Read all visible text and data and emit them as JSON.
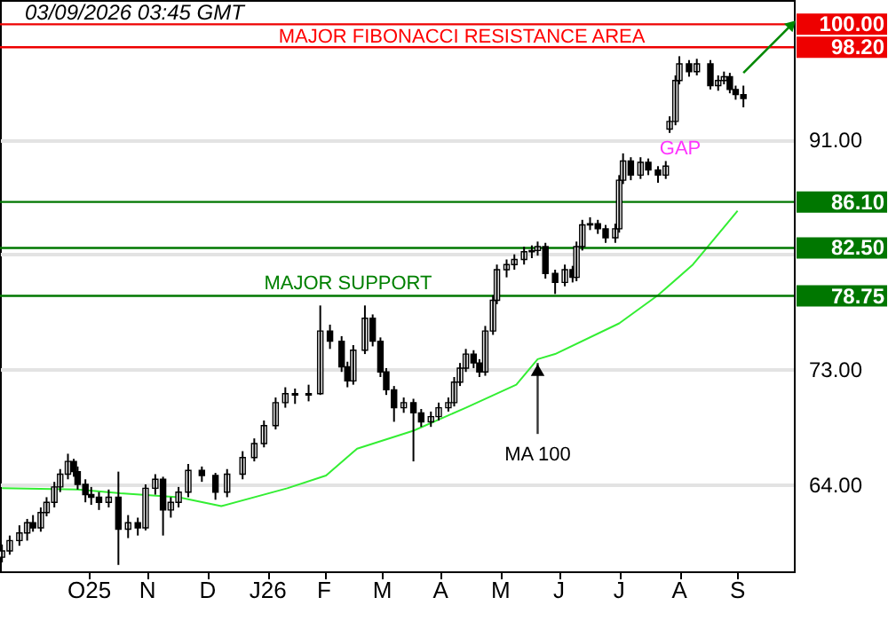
{
  "chart_data": {
    "type": "candlestick",
    "color": "#000000",
    "x": [
      "2025-09-01",
      "2025-09-05",
      "2025-09-10",
      "2025-09-14",
      "2025-09-17",
      "2025-09-21",
      "2025-09-24",
      "2025-09-28",
      "2025-10-01",
      "2025-10-05",
      "2025-10-08",
      "2025-10-10",
      "2025-10-14",
      "2025-10-17",
      "2025-10-21",
      "2025-10-26",
      "2025-10-31",
      "2025-11-05",
      "2025-11-10",
      "2025-11-14",
      "2025-11-19",
      "2025-11-23",
      "2025-11-27",
      "2025-12-01",
      "2025-12-06",
      "2025-12-13",
      "2025-12-20",
      "2025-12-26",
      "2026-01-03",
      "2026-01-09",
      "2026-01-14",
      "2026-01-20",
      "2026-01-25",
      "2026-01-30",
      "2026-02-06",
      "2026-02-12",
      "2026-02-17",
      "2026-02-23",
      "2026-02-26",
      "2026-03-01",
      "2026-03-07",
      "2026-03-11",
      "2026-03-15",
      "2026-03-18",
      "2026-03-22",
      "2026-03-27",
      "2026-04-01",
      "2026-04-05",
      "2026-04-10",
      "2026-04-14",
      "2026-04-19",
      "2026-04-22",
      "2026-04-25",
      "2026-04-28",
      "2026-05-02",
      "2026-05-05",
      "2026-05-08",
      "2026-05-12",
      "2026-05-14",
      "2026-05-19",
      "2026-05-23",
      "2026-05-28",
      "2026-06-01",
      "2026-06-04",
      "2026-06-08",
      "2026-06-13",
      "2026-06-18",
      "2026-06-22",
      "2026-06-24",
      "2026-06-27",
      "2026-07-01",
      "2026-07-05",
      "2026-07-09",
      "2026-07-14",
      "2026-07-16",
      "2026-07-18",
      "2026-07-22",
      "2026-07-27",
      "2026-07-31",
      "2026-08-05",
      "2026-08-09",
      "2026-08-11",
      "2026-08-14",
      "2026-08-16",
      "2026-08-21",
      "2026-08-25",
      "2026-09-01",
      "2026-09-05",
      "2026-09-08",
      "2026-09-11",
      "2026-09-14",
      "2026-09-18"
    ],
    "ohlc": [
      [
        58.3,
        59.3,
        57.9,
        58.8
      ],
      [
        58.8,
        60.0,
        58.5,
        59.6
      ],
      [
        59.6,
        60.8,
        59.2,
        60.2
      ],
      [
        60.2,
        61.3,
        59.6,
        61.0
      ],
      [
        61.0,
        61.6,
        60.3,
        60.6
      ],
      [
        60.6,
        62.2,
        60.3,
        61.8
      ],
      [
        61.8,
        63.0,
        61.5,
        62.6
      ],
      [
        62.6,
        64.2,
        62.2,
        63.8
      ],
      [
        63.8,
        65.2,
        63.4,
        64.8
      ],
      [
        64.8,
        66.4,
        64.4,
        65.8
      ],
      [
        65.8,
        66.0,
        64.6,
        65.0
      ],
      [
        65.0,
        65.4,
        63.6,
        64.0
      ],
      [
        64.0,
        64.4,
        62.6,
        63.2
      ],
      [
        63.2,
        63.8,
        62.4,
        63.0
      ],
      [
        63.0,
        63.4,
        62.0,
        62.6
      ],
      [
        62.6,
        63.6,
        62.2,
        63.0
      ],
      [
        63.0,
        65.0,
        57.7,
        60.5
      ],
      [
        60.5,
        61.6,
        59.8,
        61.0
      ],
      [
        61.0,
        61.4,
        60.0,
        60.6
      ],
      [
        60.6,
        64.0,
        60.4,
        63.7
      ],
      [
        63.7,
        64.8,
        63.2,
        64.4
      ],
      [
        64.4,
        64.6,
        60.0,
        62.0
      ],
      [
        62.0,
        63.0,
        61.4,
        62.6
      ],
      [
        62.6,
        63.8,
        62.2,
        63.4
      ],
      [
        63.4,
        65.6,
        63.0,
        65.1
      ],
      [
        65.1,
        65.4,
        64.2,
        64.7
      ],
      [
        64.7,
        64.9,
        62.8,
        63.4
      ],
      [
        63.4,
        65.2,
        63.0,
        64.8
      ],
      [
        64.8,
        66.6,
        64.4,
        66.1
      ],
      [
        66.1,
        67.6,
        65.8,
        67.2
      ],
      [
        67.2,
        69.0,
        66.9,
        68.6
      ],
      [
        68.6,
        70.8,
        68.3,
        70.4
      ],
      [
        70.4,
        71.6,
        70.0,
        71.1
      ],
      [
        71.1,
        71.5,
        70.3,
        71.0
      ],
      [
        71.0,
        71.8,
        70.5,
        71.1
      ],
      [
        71.1,
        78.0,
        71.0,
        76.0
      ],
      [
        76.0,
        76.5,
        74.6,
        75.2
      ],
      [
        75.2,
        75.6,
        72.8,
        73.2
      ],
      [
        73.2,
        73.6,
        71.6,
        72.1
      ],
      [
        72.1,
        74.9,
        71.8,
        74.5
      ],
      [
        74.5,
        78.0,
        74.2,
        77.0
      ],
      [
        77.0,
        77.3,
        74.8,
        75.2
      ],
      [
        75.2,
        75.5,
        72.4,
        72.8
      ],
      [
        72.8,
        73.1,
        71.0,
        71.4
      ],
      [
        71.4,
        71.7,
        68.9,
        70.0
      ],
      [
        70.0,
        70.8,
        69.6,
        70.4
      ],
      [
        70.4,
        70.7,
        65.8,
        69.6
      ],
      [
        69.6,
        69.9,
        68.5,
        68.9
      ],
      [
        68.9,
        69.7,
        68.5,
        69.3
      ],
      [
        69.3,
        70.4,
        69.0,
        70.0
      ],
      [
        70.0,
        70.8,
        69.7,
        70.4
      ],
      [
        70.4,
        72.4,
        70.1,
        72.0
      ],
      [
        72.0,
        73.5,
        71.7,
        73.1
      ],
      [
        73.1,
        74.6,
        72.8,
        74.2
      ],
      [
        74.2,
        74.5,
        73.1,
        73.5
      ],
      [
        73.5,
        73.8,
        72.4,
        72.8
      ],
      [
        72.8,
        76.4,
        72.5,
        76.0
      ],
      [
        76.0,
        78.8,
        75.7,
        78.4
      ],
      [
        78.4,
        81.2,
        78.1,
        80.8
      ],
      [
        80.8,
        81.6,
        80.2,
        81.2
      ],
      [
        81.2,
        82.0,
        80.8,
        81.6
      ],
      [
        81.6,
        82.6,
        81.2,
        82.2
      ],
      [
        82.2,
        82.7,
        81.7,
        82.3
      ],
      [
        82.3,
        83.0,
        81.9,
        82.6
      ],
      [
        82.6,
        82.9,
        80.1,
        80.5
      ],
      [
        80.5,
        80.8,
        78.9,
        79.8
      ],
      [
        79.8,
        81.2,
        79.5,
        80.8
      ],
      [
        80.8,
        81.1,
        79.8,
        80.2
      ],
      [
        80.2,
        83.0,
        79.9,
        82.6
      ],
      [
        82.6,
        84.7,
        82.3,
        84.3
      ],
      [
        84.3,
        84.9,
        83.9,
        84.4
      ],
      [
        84.4,
        84.7,
        83.6,
        84.0
      ],
      [
        84.0,
        84.3,
        82.9,
        83.3
      ],
      [
        83.3,
        84.4,
        82.9,
        84.0
      ],
      [
        84.0,
        88.2,
        83.7,
        87.8
      ],
      [
        87.8,
        89.9,
        87.5,
        89.3
      ],
      [
        89.3,
        89.6,
        87.8,
        88.2
      ],
      [
        88.2,
        89.6,
        87.9,
        89.2
      ],
      [
        89.2,
        89.5,
        88.2,
        88.6
      ],
      [
        88.6,
        88.9,
        87.6,
        88.2
      ],
      [
        88.2,
        89.3,
        87.9,
        88.9
      ],
      [
        91.8,
        92.8,
        91.5,
        92.4
      ],
      [
        92.4,
        96.0,
        92.1,
        95.6
      ],
      [
        95.6,
        97.5,
        95.3,
        96.9
      ],
      [
        96.9,
        97.2,
        95.9,
        96.3
      ],
      [
        96.3,
        97.3,
        96.0,
        96.9
      ],
      [
        96.9,
        97.2,
        94.9,
        95.2
      ],
      [
        95.2,
        96.0,
        94.8,
        95.6
      ],
      [
        95.6,
        96.3,
        95.3,
        95.9
      ],
      [
        95.9,
        96.2,
        94.6,
        94.9
      ],
      [
        94.9,
        95.2,
        94.1,
        94.5
      ],
      [
        94.5,
        95.2,
        93.5,
        94.2
      ]
    ],
    "series": [
      {
        "type": "line",
        "color": "#33ee33",
        "x": [
          "2025-09-01",
          "2025-10-10",
          "2025-11-01",
          "2025-12-01",
          "2025-12-23",
          "2026-01-26",
          "2026-02-15",
          "2026-03-03",
          "2026-04-01",
          "2026-04-28",
          "2026-05-24",
          "2026-06-04",
          "2026-06-13",
          "2026-07-16",
          "2026-08-05",
          "2026-08-23",
          "2026-09-15"
        ],
        "values": [
          63.7,
          63.6,
          63.3,
          63.0,
          62.3,
          63.7,
          64.7,
          66.8,
          68.2,
          70.0,
          71.8,
          73.8,
          74.2,
          76.6,
          78.8,
          81.2,
          85.4
        ]
      }
    ],
    "xlim": [
      "2025-08-31",
      "2026-10-14"
    ],
    "xticks": [
      {
        "value": "2025-10-16",
        "label": "O25"
      },
      {
        "value": "2025-11-15",
        "label": "N"
      },
      {
        "value": "2025-12-16",
        "label": "D"
      },
      {
        "value": "2026-01-16",
        "label": "J26"
      },
      {
        "value": "2026-02-14",
        "label": "F"
      },
      {
        "value": "2026-03-16",
        "label": "M"
      },
      {
        "value": "2026-04-15",
        "label": "A"
      },
      {
        "value": "2026-05-16",
        "label": "M"
      },
      {
        "value": "2026-06-15",
        "label": "J"
      },
      {
        "value": "2026-07-16",
        "label": "J"
      },
      {
        "value": "2026-08-16",
        "label": "A"
      },
      {
        "value": "2026-09-15",
        "label": "S"
      }
    ],
    "ylim": [
      57.2,
      101.9
    ],
    "yticks": [
      {
        "value": 64,
        "label": "64.00"
      },
      {
        "value": 73,
        "label": "73.00"
      },
      {
        "value": 82,
        "label": null
      },
      {
        "value": 91,
        "label": "91.00"
      }
    ],
    "grid": "y",
    "ref_lines": [
      {
        "axis": "y",
        "value": 100,
        "label": "100.00",
        "color": "#ee0000"
      },
      {
        "axis": "y",
        "value": 98.2,
        "label": "98.20",
        "color": "#ee0000"
      },
      {
        "axis": "y",
        "value": 86.1,
        "label": "86.10",
        "color": "#007700"
      },
      {
        "axis": "y",
        "value": 82.5,
        "label": "82.50",
        "color": "#007700"
      },
      {
        "axis": "y",
        "value": 78.75,
        "label": "78.75",
        "color": "#007700"
      }
    ],
    "annotations": [
      "03/09/2026 03:45 GMT",
      "MAJOR FIBONACCI RESISTANCE AREA",
      "MAJOR SUPPORT",
      "GAP",
      {
        "text": "MA 100",
        "x": "2026-06-04",
        "y": 73.5
      }
    ]
  }
}
